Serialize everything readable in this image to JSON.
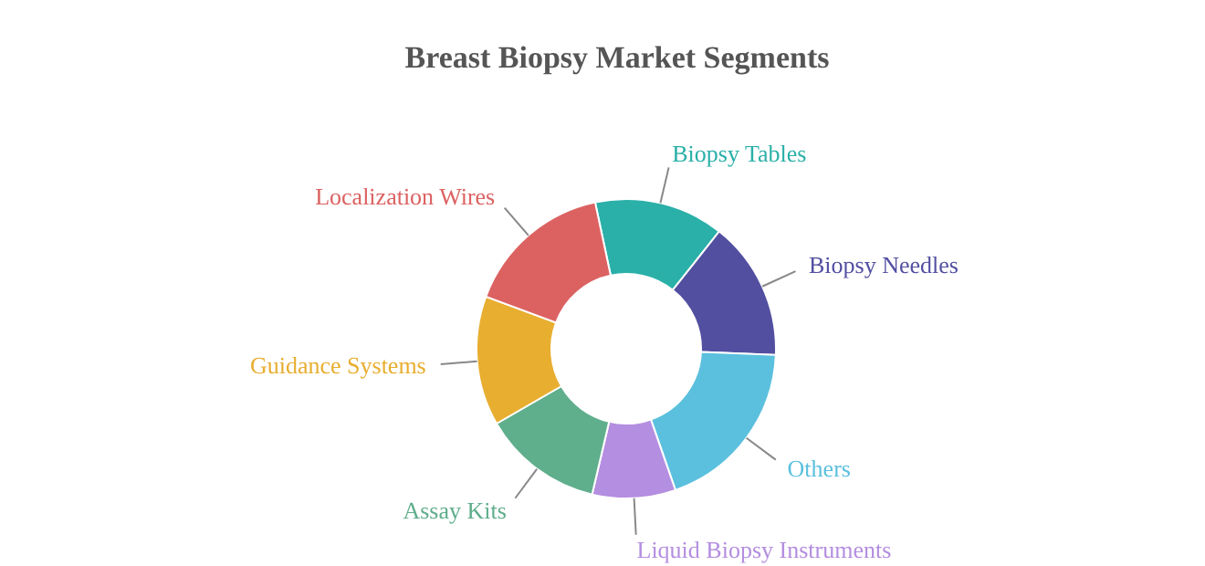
{
  "chart_data": {
    "type": "donut",
    "title": "Breast Biopsy Market Segments",
    "categories": [
      "Biopsy Tables",
      "Biopsy Needles",
      "Others",
      "Liquid Biopsy Instruments",
      "Assay Kits",
      "Guidance Systems",
      "Localization Wires"
    ],
    "values": [
      14,
      15,
      19,
      9,
      13,
      14,
      16
    ],
    "colors": [
      "#2ab0a8",
      "#524fa1",
      "#5bc0de",
      "#b48ee0",
      "#5fae8c",
      "#e8ae30",
      "#dc6262"
    ],
    "legend": false
  }
}
